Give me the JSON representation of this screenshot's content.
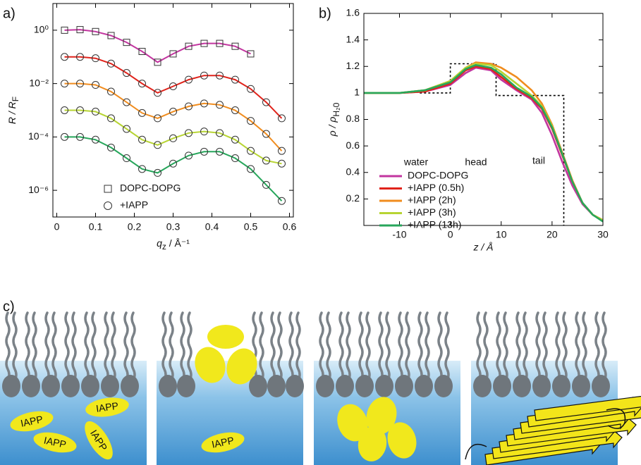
{
  "chart_data": [
    {
      "type": "line",
      "panel_label": "a)",
      "log_y": true,
      "x_label": {
        "main": "q",
        "sub": "z",
        "unit": " / Å⁻¹"
      },
      "y_label": {
        "main": "R / R",
        "sub": "F"
      },
      "xlim": [
        -0.01,
        0.61
      ],
      "ylim": [
        1e-07,
        10
      ],
      "xticks": [
        0,
        0.1,
        0.2,
        0.3,
        0.4,
        0.5,
        0.6
      ],
      "yticks": [
        {
          "value": 1,
          "label": "10⁰"
        },
        {
          "value": 0.01,
          "label": "10⁻²"
        },
        {
          "value": 0.0001,
          "label": "10⁻⁴"
        },
        {
          "value": 1e-06,
          "label": "10⁻⁶"
        }
      ],
      "legend": [
        {
          "label": "DOPC-DOPG",
          "marker": "square"
        },
        {
          "label": "+IAPP",
          "marker": "circle"
        }
      ],
      "x": [
        0.02,
        0.06,
        0.1,
        0.14,
        0.18,
        0.22,
        0.26,
        0.3,
        0.34,
        0.38,
        0.42,
        0.46,
        0.5,
        0.54,
        0.58
      ],
      "series": [
        {
          "color": "#c2359f",
          "marker": "square",
          "values": [
            1,
            1.05,
            0.89,
            0.63,
            0.35,
            0.16,
            0.063,
            0.13,
            0.25,
            0.32,
            0.32,
            0.25,
            0.13,
            null,
            null
          ]
        },
        {
          "color": "#e0231b",
          "marker": "circle",
          "values": [
            0.1,
            0.1,
            0.089,
            0.056,
            0.025,
            0.01,
            0.0045,
            0.0079,
            0.014,
            0.02,
            0.02,
            0.014,
            0.0063,
            0.002,
            0.0005
          ]
        },
        {
          "color": "#f08c1e",
          "marker": "circle",
          "values": [
            0.01,
            0.01,
            0.0089,
            0.005,
            0.002,
            0.00079,
            0.0005,
            0.00089,
            0.0014,
            0.0018,
            0.0016,
            0.001,
            0.0004,
            0.00013,
            3e-05
          ]
        },
        {
          "color": "#b7d433",
          "marker": "circle",
          "values": [
            0.001,
            0.001,
            0.00089,
            0.0005,
            0.0002,
            7.9e-05,
            5e-05,
            8.9e-05,
            0.00014,
            0.00016,
            0.00014,
            7.9e-05,
            3e-05,
            1.3e-05,
            1e-05
          ]
        },
        {
          "color": "#27a65b",
          "marker": "circle",
          "values": [
            0.0001,
            0.0001,
            7.9e-05,
            4e-05,
            1.6e-05,
            6.3e-06,
            4.5e-06,
            1e-05,
            2e-05,
            2.8e-05,
            2.8e-05,
            1.6e-05,
            6.3e-06,
            1.6e-06,
            4e-07
          ]
        }
      ]
    },
    {
      "type": "line",
      "panel_label": "b)",
      "x_label": "z / Å",
      "y_label": {
        "main": "ρ / ρ",
        "sub": "H₂0"
      },
      "xlim": [
        -17,
        30
      ],
      "ylim": [
        0,
        1.6
      ],
      "xticks": [
        -10,
        0,
        10,
        20,
        30
      ],
      "yticks": [
        0.2,
        0.4,
        0.6,
        0.8,
        1,
        1.2,
        1.4,
        1.6
      ],
      "annotations": [
        "water",
        "head",
        "tail"
      ],
      "x": [
        -17,
        -10,
        -5,
        0,
        3,
        5,
        8,
        10,
        13,
        16,
        18,
        20,
        22,
        24,
        26,
        28,
        30
      ],
      "series": [
        {
          "name": "DOPC-DOPG",
          "color": "#c2359f",
          "values": [
            1,
            1,
            1.01,
            1.06,
            1.15,
            1.19,
            1.17,
            1.1,
            1.02,
            0.95,
            0.85,
            0.68,
            0.48,
            0.3,
            0.16,
            0.08,
            0.04
          ]
        },
        {
          "name": "+IAPP (0.5h)",
          "color": "#e0231b",
          "values": [
            1,
            1,
            1.01,
            1.07,
            1.17,
            1.2,
            1.18,
            1.12,
            1.03,
            0.96,
            0.88,
            0.73,
            0.53,
            0.33,
            0.17,
            0.08,
            0.04
          ]
        },
        {
          "name": "+IAPP (2h)",
          "color": "#f08c1e",
          "values": [
            1,
            1,
            1.02,
            1.09,
            1.19,
            1.23,
            1.22,
            1.19,
            1.12,
            1.02,
            0.92,
            0.76,
            0.55,
            0.34,
            0.17,
            0.08,
            0.04
          ]
        },
        {
          "name": "+IAPP (3h)",
          "color": "#b7d433",
          "values": [
            1,
            1,
            1.02,
            1.09,
            1.19,
            1.22,
            1.21,
            1.16,
            1.07,
            0.98,
            0.9,
            0.75,
            0.54,
            0.33,
            0.17,
            0.08,
            0.04
          ]
        },
        {
          "name": "+IAPP (13h)",
          "color": "#27a65b",
          "values": [
            1,
            1,
            1.02,
            1.08,
            1.18,
            1.21,
            1.19,
            1.14,
            1.04,
            0.97,
            0.89,
            0.74,
            0.54,
            0.33,
            0.17,
            0.08,
            0.03
          ]
        }
      ],
      "model": {
        "color": "#000000",
        "x": [
          -6,
          0,
          0,
          9,
          9,
          22.3,
          22.3
        ],
        "values": [
          1,
          1,
          1.22,
          1.22,
          0.98,
          0.98,
          0
        ]
      }
    }
  ],
  "diagram": {
    "label": "c)",
    "peptide_labels": [
      "IAPP",
      "IAPP",
      "IAPP",
      "IAPP",
      "IAPP"
    ]
  }
}
